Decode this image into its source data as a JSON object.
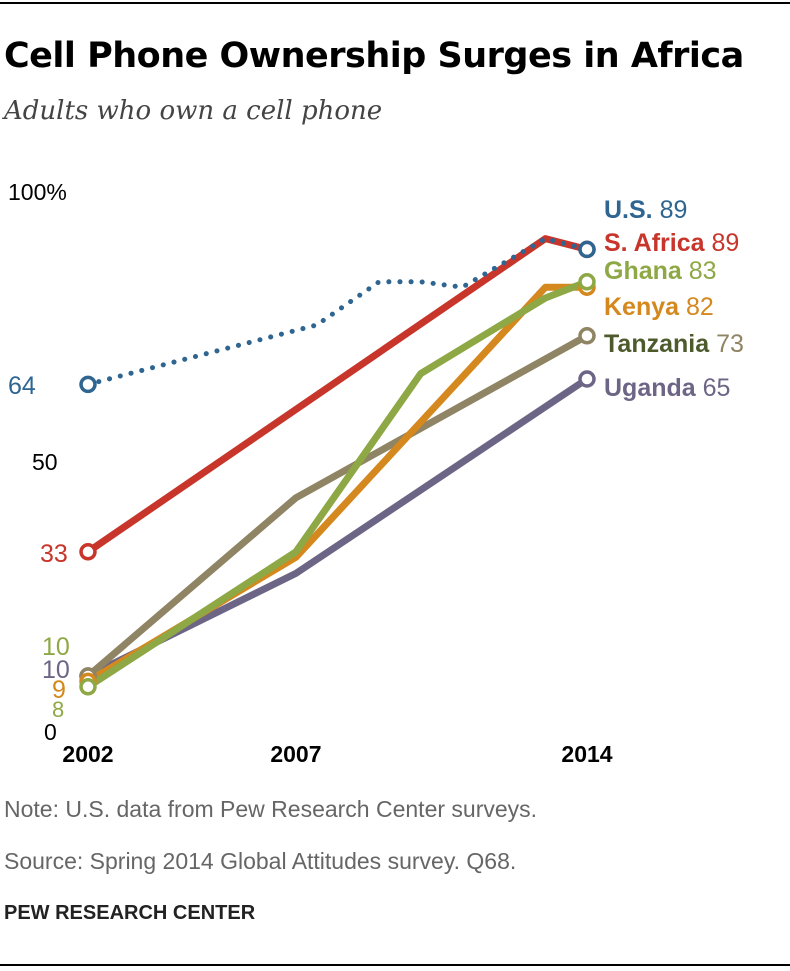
{
  "header": {
    "title": "Cell Phone Ownership Surges in Africa",
    "subtitle": "Adults who own a cell phone"
  },
  "footer": {
    "note": "Note: U.S. data from Pew Research Center surveys.",
    "source": "Source: Spring 2014 Global Attitudes survey. Q68.",
    "org": "PEW RESEARCH CENTER"
  },
  "chart_data": {
    "type": "line",
    "title": "Cell Phone Ownership Surges in Africa",
    "subtitle": "Adults who own a cell phone",
    "xlabel": "",
    "ylabel": "",
    "xlim": [
      2002,
      2014
    ],
    "ylim": [
      0,
      100
    ],
    "x_ticks": [
      "2002",
      "2007",
      "2014"
    ],
    "y_ticks": [
      "0",
      "50",
      "100%"
    ],
    "grid": false,
    "legend": "direct labels at line ends",
    "series": [
      {
        "name": "U.S.",
        "color": "#2e6591",
        "dotted": true,
        "start_label": "64",
        "end_label": "89",
        "points": [
          [
            2002,
            64
          ],
          [
            2007.5,
            75
          ],
          [
            2009,
            83
          ],
          [
            2010,
            83
          ],
          [
            2011,
            82
          ],
          [
            2013,
            91
          ],
          [
            2014,
            89
          ]
        ]
      },
      {
        "name": "S. Africa",
        "color": "#c7352b",
        "dotted": false,
        "start_label": "33",
        "end_label": "89",
        "points": [
          [
            2002,
            33
          ],
          [
            2013,
            91
          ],
          [
            2014,
            89
          ]
        ]
      },
      {
        "name": "Ghana",
        "color": "#8ea845",
        "dotted": false,
        "start_label": "8",
        "end_label": "83",
        "points": [
          [
            2002,
            8
          ],
          [
            2007,
            33
          ],
          [
            2010,
            66
          ],
          [
            2013,
            80
          ],
          [
            2014,
            83
          ]
        ]
      },
      {
        "name": "Kenya",
        "color": "#d4881e",
        "dotted": false,
        "start_label": "9",
        "end_label": "82",
        "points": [
          [
            2002,
            9
          ],
          [
            2007,
            32
          ],
          [
            2013,
            82
          ],
          [
            2014,
            82
          ]
        ]
      },
      {
        "name": "Tanzania",
        "color": "#8f8463",
        "dotted": false,
        "start_label": "10",
        "end_label": "73",
        "points": [
          [
            2002,
            10
          ],
          [
            2007,
            43
          ],
          [
            2014,
            73
          ]
        ]
      },
      {
        "name": "Uganda",
        "color": "#6d6585",
        "dotted": false,
        "start_label": "10",
        "end_label": "65",
        "points": [
          [
            2002,
            10
          ],
          [
            2007,
            29
          ],
          [
            2014,
            65
          ]
        ]
      }
    ]
  }
}
